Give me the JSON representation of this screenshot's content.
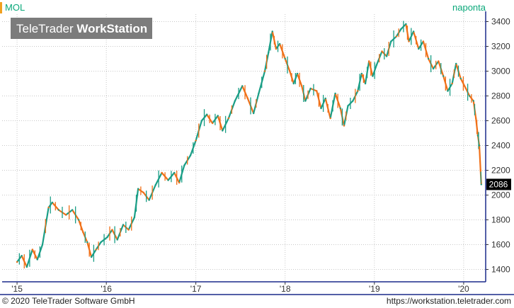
{
  "header": {
    "symbol": "MOL",
    "period": "naponta",
    "watermark_light": "TeleTrader ",
    "watermark_bold": "WorkStation"
  },
  "footer": {
    "copyright": "© 2020 TeleTrader Software GmbH",
    "url": "https://workstation.teletrader.com"
  },
  "colors": {
    "up": "#1a9e86",
    "down": "#f07018",
    "accent": "#f0a020",
    "title": "#0aa87a",
    "grid": "#c8c8c8",
    "border": "#1a2a8a"
  },
  "chart_data": {
    "type": "line",
    "style": "candlestick-like (green up / orange down)",
    "x_ticks": [
      "'15",
      "'16",
      "'17",
      "'18",
      "'19",
      "'20"
    ],
    "y_ticks": [
      1400,
      1600,
      1800,
      2000,
      2200,
      2400,
      2600,
      2800,
      3000,
      3200,
      3400
    ],
    "ylim": [
      1300,
      3460
    ],
    "last_price": 2086,
    "last_label": "2086",
    "grid": true,
    "series": [
      {
        "values": [
          [
            "2015-01-01",
            1460
          ],
          [
            "2015-01-20",
            1510
          ],
          [
            "2015-02-10",
            1420
          ],
          [
            "2015-03-05",
            1560
          ],
          [
            "2015-03-25",
            1480
          ],
          [
            "2015-04-15",
            1600
          ],
          [
            "2015-05-10",
            1900
          ],
          [
            "2015-05-25",
            1940
          ],
          [
            "2015-06-20",
            1880
          ],
          [
            "2015-07-20",
            1840
          ],
          [
            "2015-08-15",
            1880
          ],
          [
            "2015-09-10",
            1800
          ],
          [
            "2015-09-28",
            1700
          ],
          [
            "2015-10-15",
            1620
          ],
          [
            "2015-11-01",
            1500
          ],
          [
            "2015-11-20",
            1560
          ],
          [
            "2015-12-10",
            1620
          ],
          [
            "2016-01-05",
            1660
          ],
          [
            "2016-01-25",
            1720
          ],
          [
            "2016-02-15",
            1640
          ],
          [
            "2016-03-10",
            1760
          ],
          [
            "2016-04-01",
            1720
          ],
          [
            "2016-04-25",
            1820
          ],
          [
            "2016-05-10",
            2050
          ],
          [
            "2016-06-01",
            2020
          ],
          [
            "2016-06-24",
            1960
          ],
          [
            "2016-07-20",
            2080
          ],
          [
            "2016-08-15",
            2180
          ],
          [
            "2016-09-10",
            2120
          ],
          [
            "2016-10-05",
            2180
          ],
          [
            "2016-10-25",
            2100
          ],
          [
            "2016-11-15",
            2240
          ],
          [
            "2016-12-10",
            2320
          ],
          [
            "2017-01-01",
            2440
          ],
          [
            "2017-01-25",
            2600
          ],
          [
            "2017-02-15",
            2650
          ],
          [
            "2017-03-10",
            2580
          ],
          [
            "2017-04-01",
            2640
          ],
          [
            "2017-04-20",
            2520
          ],
          [
            "2017-05-15",
            2620
          ],
          [
            "2017-06-10",
            2760
          ],
          [
            "2017-07-10",
            2880
          ],
          [
            "2017-08-01",
            2780
          ],
          [
            "2017-08-25",
            2660
          ],
          [
            "2017-09-15",
            2820
          ],
          [
            "2017-10-10",
            3000
          ],
          [
            "2017-10-25",
            3150
          ],
          [
            "2017-11-10",
            3320
          ],
          [
            "2017-11-25",
            3180
          ],
          [
            "2017-12-10",
            3220
          ],
          [
            "2018-01-01",
            3100
          ],
          [
            "2018-01-20",
            3000
          ],
          [
            "2018-02-05",
            2900
          ],
          [
            "2018-02-20",
            2980
          ],
          [
            "2018-03-10",
            2880
          ],
          [
            "2018-03-25",
            2760
          ],
          [
            "2018-04-15",
            2860
          ],
          [
            "2018-05-10",
            2840
          ],
          [
            "2018-05-28",
            2700
          ],
          [
            "2018-06-15",
            2780
          ],
          [
            "2018-07-05",
            2620
          ],
          [
            "2018-07-25",
            2820
          ],
          [
            "2018-08-15",
            2700
          ],
          [
            "2018-08-30",
            2560
          ],
          [
            "2018-09-15",
            2720
          ],
          [
            "2018-10-05",
            2760
          ],
          [
            "2018-10-25",
            2840
          ],
          [
            "2018-11-10",
            2980
          ],
          [
            "2018-11-25",
            2900
          ],
          [
            "2018-12-10",
            3080
          ],
          [
            "2018-12-25",
            2960
          ],
          [
            "2019-01-10",
            3050
          ],
          [
            "2019-02-01",
            3160
          ],
          [
            "2019-02-20",
            3120
          ],
          [
            "2019-03-10",
            3240
          ],
          [
            "2019-04-01",
            3280
          ],
          [
            "2019-04-20",
            3340
          ],
          [
            "2019-05-10",
            3380
          ],
          [
            "2019-05-22",
            3240
          ],
          [
            "2019-06-10",
            3320
          ],
          [
            "2019-07-01",
            3180
          ],
          [
            "2019-07-20",
            3240
          ],
          [
            "2019-08-10",
            3100
          ],
          [
            "2019-08-30",
            3020
          ],
          [
            "2019-09-20",
            3080
          ],
          [
            "2019-10-10",
            2960
          ],
          [
            "2019-10-28",
            2840
          ],
          [
            "2019-11-15",
            2900
          ],
          [
            "2019-12-01",
            3060
          ],
          [
            "2019-12-20",
            2940
          ],
          [
            "2020-01-10",
            2860
          ],
          [
            "2020-01-25",
            2800
          ],
          [
            "2020-02-10",
            2760
          ],
          [
            "2020-02-20",
            2620
          ],
          [
            "2020-02-28",
            2480
          ],
          [
            "2020-03-05",
            2400
          ],
          [
            "2020-03-10",
            2200
          ],
          [
            "2020-03-13",
            2086
          ]
        ]
      }
    ]
  }
}
